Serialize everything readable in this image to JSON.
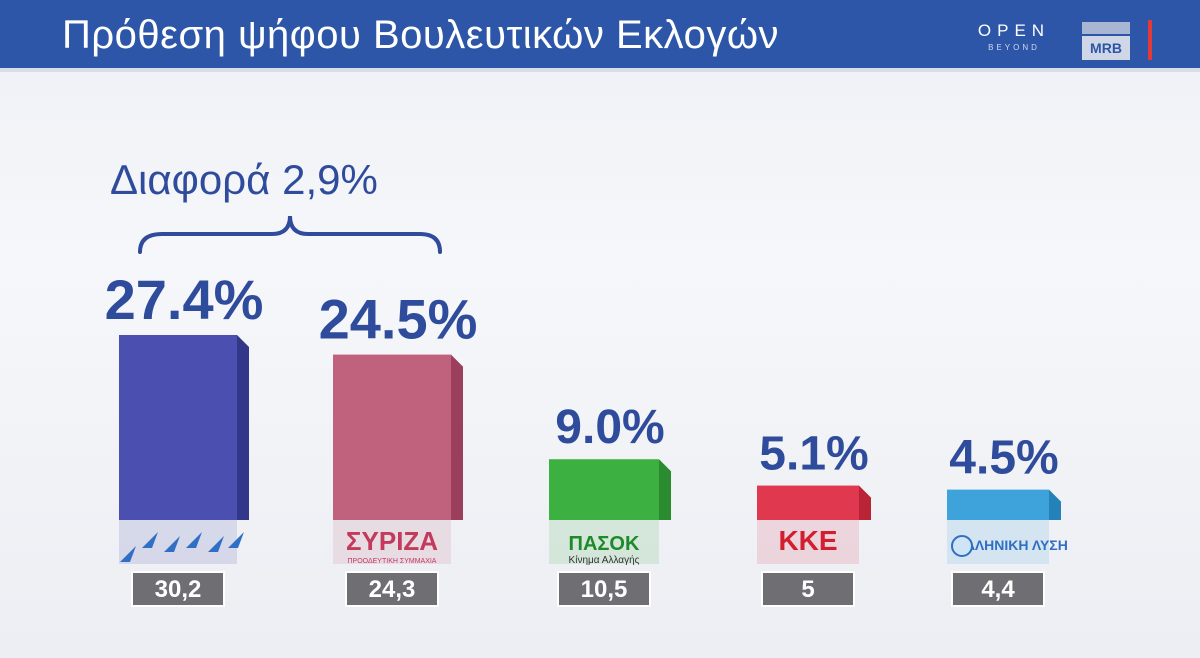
{
  "header": {
    "title": "Πρόθεση ψήφου Βουλευτικών Εκλογών",
    "logo_open": "OPEN",
    "logo_open_sub": "BEYOND",
    "logo_mrb": "MRB"
  },
  "annotation": {
    "difference_label": "Διαφορά 2,9%"
  },
  "colors": {
    "header_bg": "#2d56a8",
    "value_label": "#2f4b9c",
    "box_bg": "#6f6f73"
  },
  "chart_data": {
    "type": "bar",
    "categories": [
      "ΝΔ",
      "ΣΥΡΙΖΑ",
      "ΠΑΣΟΚ",
      "ΚΚΕ",
      "ΕΛΛΗΝΙΚΗ ΛΥΣΗ"
    ],
    "values": [
      27.4,
      24.5,
      9.0,
      5.1,
      4.5
    ],
    "value_labels": [
      "27.4%",
      "24.5%",
      "9.0%",
      "5.1%",
      "4.5%"
    ],
    "previous_values": [
      30.2,
      24.3,
      10.5,
      5,
      4.4
    ],
    "previous_labels": [
      "30,2",
      "24,3",
      "10,5",
      "5",
      "4,4"
    ],
    "party_logo_texts": [
      "",
      "ΣΥΡΙΖΑ",
      "ΠΑΣΟΚ",
      "ΚΚΕ",
      "ΕΛΛΗΝΙΚΗ ΛΥΣΗ"
    ],
    "party_logo_subtexts": [
      "",
      "ΠΡΟΟΔΕΥΤΙΚΗ ΣΥΜΜΑΧΙΑ",
      "Κίνημα Αλλαγής",
      "",
      ""
    ],
    "bar_colors": [
      "#4a4fb0",
      "#c0627e",
      "#3cb040",
      "#e0394f",
      "#3fa3db"
    ],
    "bar_side_colors": [
      "#33378a",
      "#9c3f5c",
      "#2a8c2e",
      "#b92436",
      "#2582b8"
    ],
    "ylim": [
      0,
      30
    ],
    "xlabel": "",
    "ylabel": "",
    "title": "Πρόθεση ψήφου Βουλευτικών Εκλογών"
  }
}
